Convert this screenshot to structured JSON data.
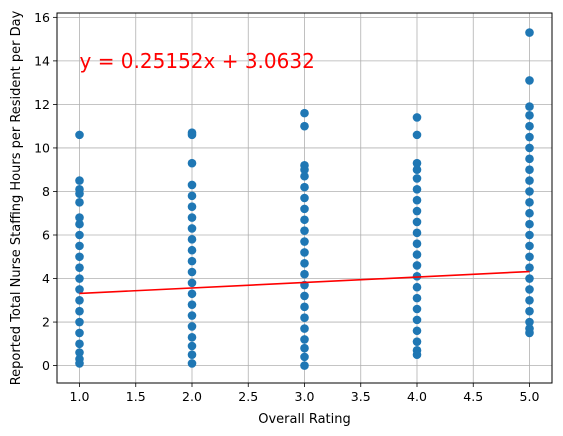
{
  "chart_data": {
    "type": "scatter",
    "title": "",
    "xlabel": "Overall Rating",
    "ylabel": "Reported Total Nurse Staffing Hours per Resident per Day",
    "xlim": [
      0.8,
      5.2
    ],
    "ylim": [
      -0.8,
      16.2
    ],
    "xticks": [
      1.0,
      1.5,
      2.0,
      2.5,
      3.0,
      3.5,
      4.0,
      4.5,
      5.0
    ],
    "xtick_labels": [
      "1.0",
      "1.5",
      "2.0",
      "2.5",
      "3.0",
      "3.5",
      "4.0",
      "4.5",
      "5.0"
    ],
    "yticks": [
      0,
      2,
      4,
      6,
      8,
      10,
      12,
      14,
      16
    ],
    "ytick_labels": [
      "0",
      "2",
      "4",
      "6",
      "8",
      "10",
      "12",
      "14",
      "16"
    ],
    "grid": true,
    "marker_color": "#1f77b4",
    "line_color": "#ff0000",
    "series": [
      {
        "type": "scatter",
        "points": [
          {
            "x": 1,
            "y": 10.6
          },
          {
            "x": 1,
            "y": 8.5
          },
          {
            "x": 1,
            "y": 8.1
          },
          {
            "x": 1,
            "y": 7.9
          },
          {
            "x": 1,
            "y": 7.5
          },
          {
            "x": 1,
            "y": 6.8
          },
          {
            "x": 1,
            "y": 6.5
          },
          {
            "x": 1,
            "y": 6.0
          },
          {
            "x": 1,
            "y": 5.5
          },
          {
            "x": 1,
            "y": 5.0
          },
          {
            "x": 1,
            "y": 4.5
          },
          {
            "x": 1,
            "y": 4.0
          },
          {
            "x": 1,
            "y": 3.5
          },
          {
            "x": 1,
            "y": 3.0
          },
          {
            "x": 1,
            "y": 2.5
          },
          {
            "x": 1,
            "y": 2.0
          },
          {
            "x": 1,
            "y": 1.5
          },
          {
            "x": 1,
            "y": 1.0
          },
          {
            "x": 1,
            "y": 0.6
          },
          {
            "x": 1,
            "y": 0.3
          },
          {
            "x": 1,
            "y": 0.1
          },
          {
            "x": 2,
            "y": 10.7
          },
          {
            "x": 2,
            "y": 10.6
          },
          {
            "x": 2,
            "y": 9.3
          },
          {
            "x": 2,
            "y": 8.3
          },
          {
            "x": 2,
            "y": 7.8
          },
          {
            "x": 2,
            "y": 7.3
          },
          {
            "x": 2,
            "y": 6.8
          },
          {
            "x": 2,
            "y": 6.3
          },
          {
            "x": 2,
            "y": 5.8
          },
          {
            "x": 2,
            "y": 5.3
          },
          {
            "x": 2,
            "y": 4.8
          },
          {
            "x": 2,
            "y": 4.3
          },
          {
            "x": 2,
            "y": 3.8
          },
          {
            "x": 2,
            "y": 3.3
          },
          {
            "x": 2,
            "y": 2.8
          },
          {
            "x": 2,
            "y": 2.3
          },
          {
            "x": 2,
            "y": 1.8
          },
          {
            "x": 2,
            "y": 1.3
          },
          {
            "x": 2,
            "y": 0.9
          },
          {
            "x": 2,
            "y": 0.5
          },
          {
            "x": 2,
            "y": 0.1
          },
          {
            "x": 3,
            "y": 11.6
          },
          {
            "x": 3,
            "y": 11.0
          },
          {
            "x": 3,
            "y": 9.2
          },
          {
            "x": 3,
            "y": 9.0
          },
          {
            "x": 3,
            "y": 8.7
          },
          {
            "x": 3,
            "y": 8.2
          },
          {
            "x": 3,
            "y": 7.7
          },
          {
            "x": 3,
            "y": 7.2
          },
          {
            "x": 3,
            "y": 6.7
          },
          {
            "x": 3,
            "y": 6.2
          },
          {
            "x": 3,
            "y": 5.7
          },
          {
            "x": 3,
            "y": 5.2
          },
          {
            "x": 3,
            "y": 4.7
          },
          {
            "x": 3,
            "y": 4.2
          },
          {
            "x": 3,
            "y": 3.7
          },
          {
            "x": 3,
            "y": 3.2
          },
          {
            "x": 3,
            "y": 2.7
          },
          {
            "x": 3,
            "y": 2.2
          },
          {
            "x": 3,
            "y": 1.7
          },
          {
            "x": 3,
            "y": 1.2
          },
          {
            "x": 3,
            "y": 0.8
          },
          {
            "x": 3,
            "y": 0.4
          },
          {
            "x": 3,
            "y": 0.0
          },
          {
            "x": 4,
            "y": 11.4
          },
          {
            "x": 4,
            "y": 10.6
          },
          {
            "x": 4,
            "y": 9.3
          },
          {
            "x": 4,
            "y": 9.0
          },
          {
            "x": 4,
            "y": 8.6
          },
          {
            "x": 4,
            "y": 8.1
          },
          {
            "x": 4,
            "y": 7.6
          },
          {
            "x": 4,
            "y": 7.1
          },
          {
            "x": 4,
            "y": 6.6
          },
          {
            "x": 4,
            "y": 6.1
          },
          {
            "x": 4,
            "y": 5.6
          },
          {
            "x": 4,
            "y": 5.1
          },
          {
            "x": 4,
            "y": 4.6
          },
          {
            "x": 4,
            "y": 4.1
          },
          {
            "x": 4,
            "y": 3.6
          },
          {
            "x": 4,
            "y": 3.1
          },
          {
            "x": 4,
            "y": 2.6
          },
          {
            "x": 4,
            "y": 2.1
          },
          {
            "x": 4,
            "y": 1.6
          },
          {
            "x": 4,
            "y": 1.1
          },
          {
            "x": 4,
            "y": 0.7
          },
          {
            "x": 4,
            "y": 0.5
          },
          {
            "x": 5,
            "y": 15.3
          },
          {
            "x": 5,
            "y": 13.1
          },
          {
            "x": 5,
            "y": 11.9
          },
          {
            "x": 5,
            "y": 11.5
          },
          {
            "x": 5,
            "y": 11.0
          },
          {
            "x": 5,
            "y": 10.5
          },
          {
            "x": 5,
            "y": 10.0
          },
          {
            "x": 5,
            "y": 9.5
          },
          {
            "x": 5,
            "y": 9.0
          },
          {
            "x": 5,
            "y": 8.5
          },
          {
            "x": 5,
            "y": 8.0
          },
          {
            "x": 5,
            "y": 7.5
          },
          {
            "x": 5,
            "y": 7.0
          },
          {
            "x": 5,
            "y": 6.5
          },
          {
            "x": 5,
            "y": 6.0
          },
          {
            "x": 5,
            "y": 5.5
          },
          {
            "x": 5,
            "y": 5.0
          },
          {
            "x": 5,
            "y": 4.5
          },
          {
            "x": 5,
            "y": 4.0
          },
          {
            "x": 5,
            "y": 3.5
          },
          {
            "x": 5,
            "y": 3.0
          },
          {
            "x": 5,
            "y": 2.5
          },
          {
            "x": 5,
            "y": 2.0
          },
          {
            "x": 5,
            "y": 1.7
          },
          {
            "x": 5,
            "y": 1.5
          }
        ]
      },
      {
        "type": "line",
        "slope": 0.25152,
        "intercept": 3.0632,
        "x": [
          1,
          5
        ],
        "y": [
          3.31472,
          4.3208
        ]
      }
    ],
    "annotations": [
      {
        "text": "y = 0.25152x + 3.0632",
        "x": 1.0,
        "y": 14.0,
        "color": "#ff0000"
      }
    ]
  }
}
